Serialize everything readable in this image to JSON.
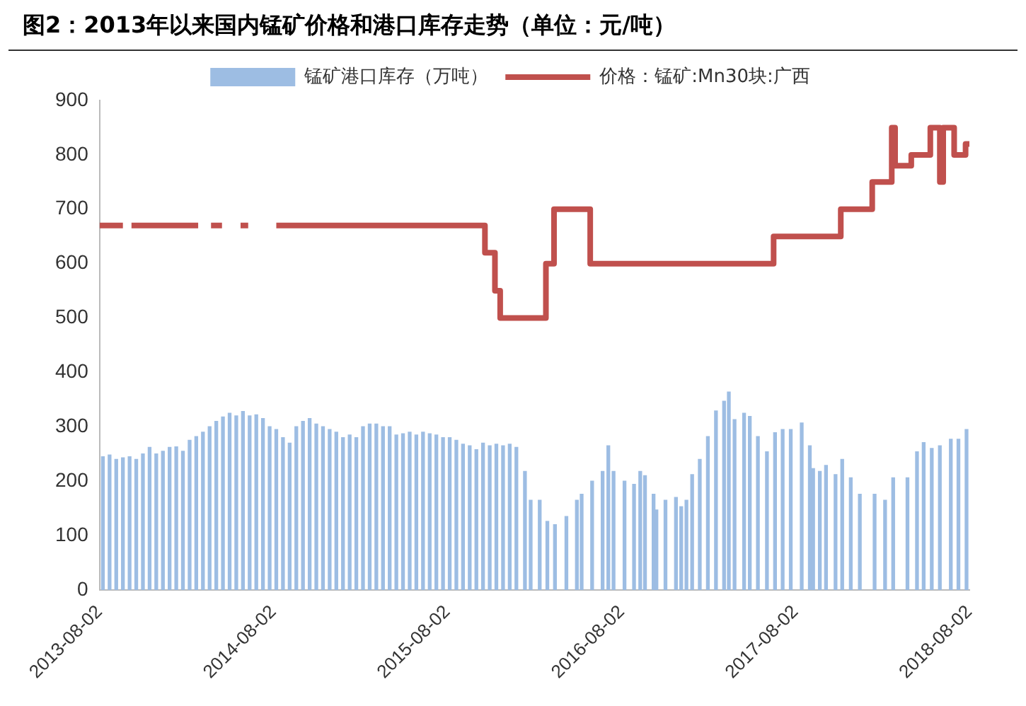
{
  "chart_data": {
    "type": "bar",
    "title": "图2：2013年以来国内锰矿价格和港口库存走势（单位：元/吨）",
    "legend": "top",
    "grid": false,
    "xlim": [
      "2013-08-02",
      "2018-08-02"
    ],
    "xticks": [
      "2013-08-02",
      "2014-08-02",
      "2015-08-02",
      "2016-08-02",
      "2017-08-02",
      "2018-08-02"
    ],
    "ylim": [
      0,
      900
    ],
    "yticks": [
      0,
      100,
      200,
      300,
      400,
      500,
      600,
      700,
      800,
      900
    ],
    "series": [
      {
        "name": "锰矿港口库存（万吨）",
        "color": "#9dbde3",
        "x": [
          "2013-08-09",
          "2013-08-23",
          "2013-09-06",
          "2013-09-20",
          "2013-10-04",
          "2013-10-18",
          "2013-11-01",
          "2013-11-15",
          "2013-11-29",
          "2013-12-13",
          "2013-12-27",
          "2014-01-10",
          "2014-01-24",
          "2014-02-07",
          "2014-02-21",
          "2014-03-07",
          "2014-03-21",
          "2014-04-04",
          "2014-04-18",
          "2014-05-02",
          "2014-05-16",
          "2014-05-30",
          "2014-06-13",
          "2014-06-27",
          "2014-07-11",
          "2014-07-25",
          "2014-08-08",
          "2014-08-22",
          "2014-09-05",
          "2014-09-19",
          "2014-10-03",
          "2014-10-17",
          "2014-10-31",
          "2014-11-14",
          "2014-11-28",
          "2014-12-12",
          "2014-12-26",
          "2015-01-09",
          "2015-01-23",
          "2015-02-06",
          "2015-02-20",
          "2015-03-06",
          "2015-03-20",
          "2015-04-03",
          "2015-04-17",
          "2015-05-01",
          "2015-05-15",
          "2015-05-29",
          "2015-06-12",
          "2015-06-26",
          "2015-07-10",
          "2015-07-24",
          "2015-08-07",
          "2015-08-21",
          "2015-09-04",
          "2015-09-18",
          "2015-10-02",
          "2015-10-16",
          "2015-10-30",
          "2015-11-13",
          "2015-11-27",
          "2015-12-11",
          "2015-12-25",
          "2016-01-12",
          "2016-01-24",
          "2016-02-12",
          "2016-02-28",
          "2016-03-15",
          "2016-04-08",
          "2016-04-30",
          "2016-05-10",
          "2016-06-01",
          "2016-06-23",
          "2016-07-05",
          "2016-07-16",
          "2016-08-08",
          "2016-08-28",
          "2016-09-10",
          "2016-09-20",
          "2016-10-08",
          "2016-10-14",
          "2016-11-02",
          "2016-11-24",
          "2016-12-05",
          "2016-12-16",
          "2016-12-28",
          "2017-01-13",
          "2017-01-30",
          "2017-02-16",
          "2017-03-05",
          "2017-03-15",
          "2017-03-27",
          "2017-04-16",
          "2017-04-28",
          "2017-05-15",
          "2017-06-03",
          "2017-06-20",
          "2017-07-06",
          "2017-07-23",
          "2017-08-15",
          "2017-09-01",
          "2017-09-08",
          "2017-09-22",
          "2017-10-05",
          "2017-10-25",
          "2017-11-08",
          "2017-11-26",
          "2017-12-15",
          "2018-01-15",
          "2018-02-06",
          "2018-02-23",
          "2018-03-25",
          "2018-04-14",
          "2018-04-28",
          "2018-05-15",
          "2018-06-01",
          "2018-06-24",
          "2018-07-10",
          "2018-07-27"
        ],
        "values": [
          245,
          248,
          240,
          243,
          245,
          240,
          250,
          262,
          250,
          255,
          262,
          263,
          255,
          275,
          282,
          290,
          300,
          310,
          318,
          325,
          320,
          328,
          320,
          322,
          315,
          300,
          295,
          280,
          270,
          300,
          310,
          315,
          305,
          300,
          295,
          290,
          280,
          285,
          280,
          300,
          305,
          305,
          300,
          300,
          285,
          287,
          290,
          285,
          290,
          287,
          285,
          280,
          280,
          275,
          268,
          265,
          258,
          270,
          265,
          268,
          265,
          268,
          262,
          218,
          165,
          165,
          126,
          120,
          135,
          165,
          176,
          200,
          218,
          265,
          218,
          200,
          194,
          218,
          210,
          176,
          147,
          165,
          170,
          153,
          165,
          212,
          240,
          282,
          329,
          347,
          364,
          313,
          325,
          319,
          282,
          254,
          289,
          295,
          295,
          307,
          265,
          223,
          218,
          229,
          212,
          240,
          206,
          176,
          176,
          165,
          206,
          206,
          254,
          271,
          260,
          265,
          277,
          277,
          295
        ]
      },
      {
        "name": "价格：锰矿:Mn30块:广西",
        "type": "step",
        "color": "#c0504d",
        "x": [
          "2013-08-02",
          "2013-09-20",
          "2013-10-01",
          "2013-10-08",
          "2014-02-25",
          "2014-03-10",
          "2014-03-24",
          "2014-04-16",
          "2014-05-01",
          "2014-05-25",
          "2014-06-10",
          "2014-07-01",
          "2014-08-08",
          "2015-10-20",
          "2015-11-10",
          "2015-11-21",
          "2016-02-25",
          "2016-03-13",
          "2016-05-28",
          "2017-06-17",
          "2017-11-05",
          "2018-01-10",
          "2018-02-20",
          "2018-02-27",
          "2018-04-02",
          "2018-05-12",
          "2018-06-01",
          "2018-06-08",
          "2018-07-01",
          "2018-07-25",
          "2018-08-02"
        ],
        "values": [
          670,
          670,
          null,
          670,
          670,
          null,
          670,
          670,
          null,
          670,
          670,
          null,
          670,
          620,
          550,
          500,
          600,
          700,
          600,
          650,
          700,
          750,
          850,
          780,
          800,
          850,
          750,
          850,
          800,
          820,
          820
        ]
      }
    ]
  }
}
